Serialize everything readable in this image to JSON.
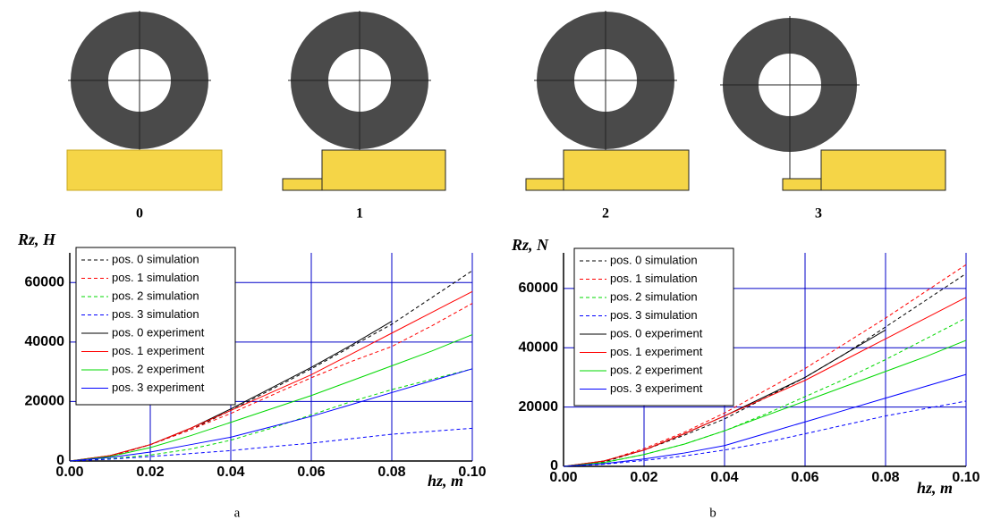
{
  "diagrams": {
    "labels": [
      "0",
      "1",
      "2",
      "3"
    ]
  },
  "chart_data": [
    {
      "type": "line",
      "caption": "a",
      "ylabel": "Rz, H",
      "xlabel": "hz, m",
      "x": [
        0,
        0.01,
        0.02,
        0.03,
        0.04,
        0.05,
        0.06,
        0.07,
        0.08,
        0.09,
        0.1
      ],
      "xlim": [
        0,
        0.1
      ],
      "ylim": [
        0,
        70000
      ],
      "xticks": [
        {
          "value": 0,
          "label": "0.00"
        },
        {
          "value": 0.02,
          "label": "0.02"
        },
        {
          "value": 0.04,
          "label": "0.04"
        },
        {
          "value": 0.06,
          "label": "0.06"
        },
        {
          "value": 0.08,
          "label": "0.08"
        },
        {
          "value": 0.1,
          "label": "0.10"
        }
      ],
      "yticks": [
        0,
        20000,
        40000,
        60000
      ],
      "grid": true,
      "grid_color": "#0000c8",
      "legend": "upper-left",
      "series": [
        {
          "name": "pos. 0 simulation",
          "color": "#000000",
          "dashed": true,
          "values": [
            0,
            1500,
            5500,
            10500,
            17000,
            24000,
            31000,
            38500,
            46000,
            55000,
            64000
          ]
        },
        {
          "name": "pos. 1 simulation",
          "color": "#ff0000",
          "dashed": true,
          "values": [
            0,
            1500,
            5500,
            10500,
            16000,
            22000,
            28000,
            33500,
            38500,
            45500,
            53000
          ]
        },
        {
          "name": "pos. 2 simulation",
          "color": "#00d800",
          "dashed": true,
          "values": [
            0,
            800,
            2000,
            4000,
            7000,
            11000,
            15500,
            20000,
            24000,
            27500,
            31000
          ]
        },
        {
          "name": "pos. 3 simulation",
          "color": "#0000ff",
          "dashed": true,
          "values": [
            0,
            600,
            1500,
            2500,
            3500,
            4800,
            6000,
            7500,
            9000,
            10000,
            11000
          ]
        },
        {
          "name": "pos. 0 experiment",
          "color": "#000000",
          "dashed": false,
          "values": [
            0,
            1800,
            5500,
            11000,
            17500,
            24500,
            31500,
            39000,
            47000,
            null,
            null
          ]
        },
        {
          "name": "pos. 1 experiment",
          "color": "#ff0000",
          "dashed": false,
          "values": [
            0,
            1800,
            5500,
            11000,
            17000,
            23000,
            29000,
            36000,
            43000,
            50000,
            57000
          ]
        },
        {
          "name": "pos. 2 experiment",
          "color": "#00d800",
          "dashed": false,
          "values": [
            0,
            1500,
            4500,
            8500,
            13000,
            17500,
            22000,
            27000,
            32000,
            37000,
            42500
          ]
        },
        {
          "name": "pos. 3 experiment",
          "color": "#0000ff",
          "dashed": false,
          "values": [
            0,
            1200,
            3000,
            5500,
            8000,
            11500,
            15000,
            19000,
            23000,
            27000,
            31000
          ]
        }
      ]
    },
    {
      "type": "line",
      "caption": "b",
      "ylabel": "Rz, N",
      "xlabel": "hz, m",
      "x": [
        0,
        0.01,
        0.02,
        0.03,
        0.04,
        0.05,
        0.06,
        0.07,
        0.08,
        0.09,
        0.1
      ],
      "xlim": [
        0,
        0.1
      ],
      "ylim": [
        0,
        72000
      ],
      "xticks": [
        {
          "value": 0,
          "label": "0.00"
        },
        {
          "value": 0.02,
          "label": "0.02"
        },
        {
          "value": 0.04,
          "label": "0.04"
        },
        {
          "value": 0.06,
          "label": "0.06"
        },
        {
          "value": 0.08,
          "label": "0.08"
        },
        {
          "value": 0.1,
          "label": "0.10"
        }
      ],
      "yticks": [
        0,
        20000,
        40000,
        60000
      ],
      "grid": true,
      "grid_color": "#0000c8",
      "legend": "upper-left",
      "series": [
        {
          "name": "pos. 0 simulation",
          "color": "#000000",
          "dashed": true,
          "values": [
            0,
            1500,
            5500,
            10500,
            16000,
            23000,
            30000,
            38000,
            47000,
            56000,
            65000
          ]
        },
        {
          "name": "pos. 1 simulation",
          "color": "#ff0000",
          "dashed": true,
          "values": [
            0,
            1700,
            6000,
            11500,
            18000,
            25500,
            33000,
            41500,
            50000,
            59000,
            68000
          ]
        },
        {
          "name": "pos. 2 simulation",
          "color": "#00d800",
          "dashed": true,
          "values": [
            0,
            1200,
            4000,
            7500,
            12000,
            17500,
            23500,
            29500,
            36000,
            43000,
            50000
          ]
        },
        {
          "name": "pos. 3 simulation",
          "color": "#0000ff",
          "dashed": true,
          "values": [
            0,
            700,
            2000,
            3500,
            5500,
            8000,
            11000,
            14000,
            17000,
            19500,
            22000
          ]
        },
        {
          "name": "pos. 0 experiment",
          "color": "#000000",
          "dashed": false,
          "values": [
            0,
            1800,
            5500,
            11000,
            17000,
            23500,
            30000,
            38000,
            46000,
            null,
            null
          ]
        },
        {
          "name": "pos. 1 experiment",
          "color": "#ff0000",
          "dashed": false,
          "values": [
            0,
            1800,
            5500,
            11000,
            17000,
            23000,
            29000,
            36000,
            43000,
            50000,
            57000
          ]
        },
        {
          "name": "pos. 2 experiment",
          "color": "#00d800",
          "dashed": false,
          "values": [
            0,
            1300,
            4000,
            7500,
            12000,
            17000,
            22000,
            27000,
            32000,
            37000,
            42500
          ]
        },
        {
          "name": "pos. 3 experiment",
          "color": "#0000ff",
          "dashed": false,
          "values": [
            0,
            900,
            2500,
            4500,
            7000,
            11000,
            15000,
            19000,
            23000,
            27000,
            31000
          ]
        }
      ]
    }
  ]
}
